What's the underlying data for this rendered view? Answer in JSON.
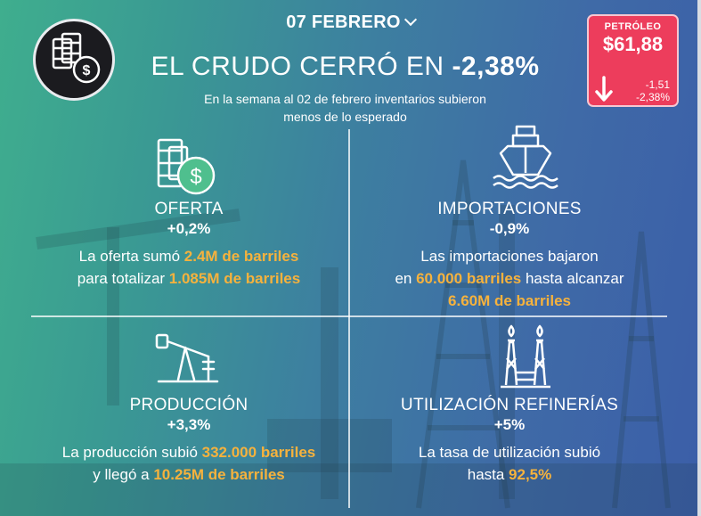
{
  "header": {
    "date": "07 FEBRERO",
    "headline_prefix": "EL CRUDO CERRÓ EN ",
    "headline_value": "-2,38%",
    "subtitle_line1": "En la semana al 02 de febrero inventarios subieron",
    "subtitle_line2": "menos de lo esperado"
  },
  "oil_badge": {
    "label": "PETRÓLEO",
    "price": "$61,88",
    "change_abs": "-1,51",
    "change_pct": "-2,38%"
  },
  "sections": {
    "oferta": {
      "title": "OFERTA",
      "pct": "+0,2%",
      "line1_pre": "La oferta sumó ",
      "line1_hl": "2.4M de barriles",
      "line2_pre": "para totalizar ",
      "line2_hl": "1.085M de barriles"
    },
    "importaciones": {
      "title": "IMPORTACIONES",
      "pct": "-0,9%",
      "line1": "Las importaciones bajaron",
      "line2_pre": "en ",
      "line2_hl": "60.000 barriles",
      "line2_post": " hasta alcanzar",
      "line3_hl": "6.60M de barriles"
    },
    "produccion": {
      "title": "PRODUCCIÓN",
      "pct": "+3,3%",
      "line1_pre": "La producción subió ",
      "line1_hl": "332.000 barriles",
      "line2_pre": "y llegó a ",
      "line2_hl": "10.25M de barriles"
    },
    "refinerias": {
      "title": "UTILIZACIÓN REFINERÍAS",
      "pct": "+5%",
      "line1": "La tasa de utilización subió",
      "line2_pre": "hasta ",
      "line2_hl": "92,5%"
    }
  },
  "colors": {
    "accent_orange": "#f6b23d",
    "badge_red": "#ed3d5c",
    "dollar_green": "#4fbf8e"
  },
  "icons": {
    "logo": "barrels-dollar-icon",
    "oferta": "barrels-dollar-icon",
    "importaciones": "ship-icon",
    "produccion": "pumpjack-icon",
    "refinerias": "refinery-icon",
    "badge_arrow": "arrow-down-icon"
  }
}
